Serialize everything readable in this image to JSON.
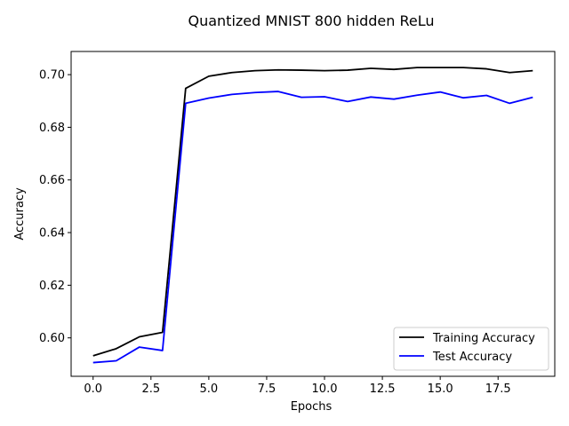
{
  "chart_data": {
    "type": "line",
    "title": "Quantized MNIST 800 hidden ReLu",
    "xlabel": "Epochs",
    "ylabel": "Accuracy",
    "xlim": [
      -0.95,
      19.95
    ],
    "ylim": [
      0.5854,
      0.7088
    ],
    "xticks": [
      0.0,
      2.5,
      5.0,
      7.5,
      10.0,
      12.5,
      15.0,
      17.5
    ],
    "xtick_labels": [
      "0.0",
      "2.5",
      "5.0",
      "7.5",
      "10.0",
      "12.5",
      "15.0",
      "17.5"
    ],
    "yticks": [
      0.6,
      0.62,
      0.64,
      0.66,
      0.68,
      0.7
    ],
    "ytick_labels": [
      "0.60",
      "0.62",
      "0.64",
      "0.66",
      "0.68",
      "0.70"
    ],
    "grid": false,
    "legend_position": "lower-right",
    "x": [
      0,
      1,
      2,
      3,
      4,
      5,
      6,
      7,
      8,
      9,
      10,
      11,
      12,
      13,
      14,
      15,
      16,
      17,
      18,
      19
    ],
    "series": [
      {
        "name": "Training Accuracy",
        "color": "#000000",
        "values": [
          0.5932,
          0.5959,
          0.6004,
          0.6021,
          0.6948,
          0.6994,
          0.7008,
          0.7015,
          0.7018,
          0.7017,
          0.7015,
          0.7017,
          0.7024,
          0.702,
          0.7027,
          0.7027,
          0.7027,
          0.7022,
          0.7008,
          0.7015
        ]
      },
      {
        "name": "Test Accuracy",
        "color": "#0000ff",
        "values": [
          0.5906,
          0.5913,
          0.5965,
          0.5952,
          0.6891,
          0.6911,
          0.6925,
          0.6932,
          0.6936,
          0.6914,
          0.6916,
          0.6898,
          0.6915,
          0.6907,
          0.6922,
          0.6934,
          0.6912,
          0.6921,
          0.6891,
          0.6914
        ]
      }
    ]
  }
}
